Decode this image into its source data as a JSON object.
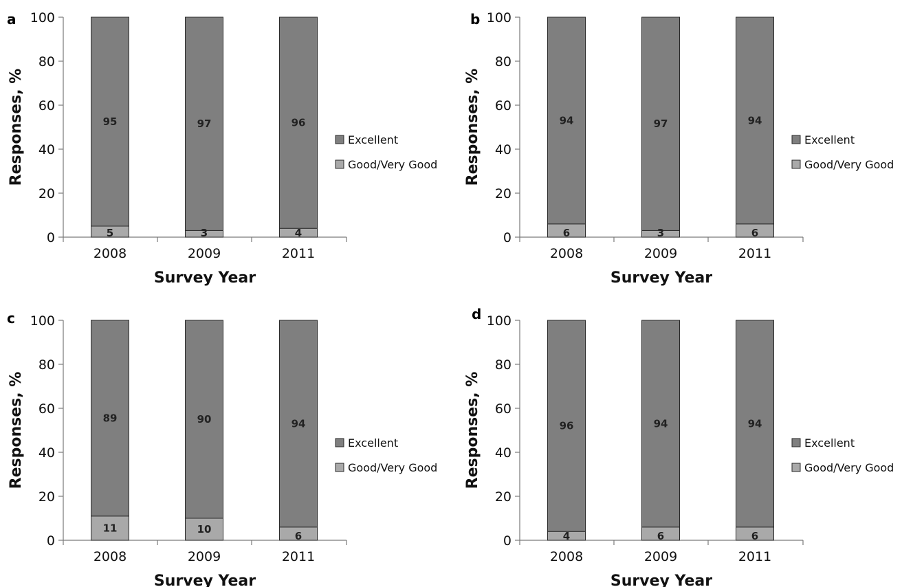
{
  "chart_data": [
    {
      "panel": "a",
      "type": "bar",
      "stacked": true,
      "categories": [
        "2008",
        "2009",
        "2011"
      ],
      "series": [
        {
          "name": "Good/Very Good",
          "values": [
            5,
            3,
            4
          ],
          "color": "#a9a9a9"
        },
        {
          "name": "Excellent",
          "values": [
            95,
            97,
            96
          ],
          "color": "#7f7f7f"
        }
      ],
      "xlabel": "Survey Year",
      "ylabel": "Responses, %",
      "ylim": [
        0,
        100
      ],
      "yticks": [
        "0",
        "20",
        "40",
        "60",
        "80",
        "100"
      ],
      "legend": [
        "Excellent",
        "Good/Very Good"
      ],
      "legend_position": "right",
      "grid": false
    },
    {
      "panel": "b",
      "type": "bar",
      "stacked": true,
      "categories": [
        "2008",
        "2009",
        "2011"
      ],
      "series": [
        {
          "name": "Good/Very Good",
          "values": [
            6,
            3,
            6
          ],
          "color": "#a9a9a9"
        },
        {
          "name": "Excellent",
          "values": [
            94,
            97,
            94
          ],
          "color": "#7f7f7f"
        }
      ],
      "xlabel": "Survey Year",
      "ylabel": "Responses, %",
      "ylim": [
        0,
        100
      ],
      "yticks": [
        "0",
        "20",
        "40",
        "60",
        "80",
        "100"
      ],
      "legend": [
        "Excellent",
        "Good/Very Good"
      ],
      "legend_position": "right",
      "grid": false
    },
    {
      "panel": "c",
      "type": "bar",
      "stacked": true,
      "categories": [
        "2008",
        "2009",
        "2011"
      ],
      "series": [
        {
          "name": "Good/Very Good",
          "values": [
            11,
            10,
            6
          ],
          "color": "#a9a9a9"
        },
        {
          "name": "Excellent",
          "values": [
            89,
            90,
            94
          ],
          "color": "#7f7f7f"
        }
      ],
      "xlabel": "Survey Year",
      "ylabel": "Responses, %",
      "ylim": [
        0,
        100
      ],
      "yticks": [
        "0",
        "20",
        "40",
        "60",
        "80",
        "100"
      ],
      "legend": [
        "Excellent",
        "Good/Very Good"
      ],
      "legend_position": "right",
      "grid": false
    },
    {
      "panel": "d",
      "type": "bar",
      "stacked": true,
      "categories": [
        "2008",
        "2009",
        "2011"
      ],
      "series": [
        {
          "name": "Good/Very Good",
          "values": [
            4,
            6,
            6
          ],
          "color": "#a9a9a9"
        },
        {
          "name": "Excellent",
          "values": [
            96,
            94,
            94
          ],
          "color": "#7f7f7f"
        }
      ],
      "xlabel": "Survey Year",
      "ylabel": "Responses, %",
      "ylim": [
        0,
        100
      ],
      "yticks": [
        "0",
        "20",
        "40",
        "60",
        "80",
        "100"
      ],
      "legend": [
        "Excellent",
        "Good/Very Good"
      ],
      "legend_position": "right",
      "grid": false
    }
  ],
  "colors": {
    "excellent": "#7f7f7f",
    "good": "#a9a9a9",
    "bar_outline": "#2b2b2b",
    "axis": "#7a7a7a"
  }
}
